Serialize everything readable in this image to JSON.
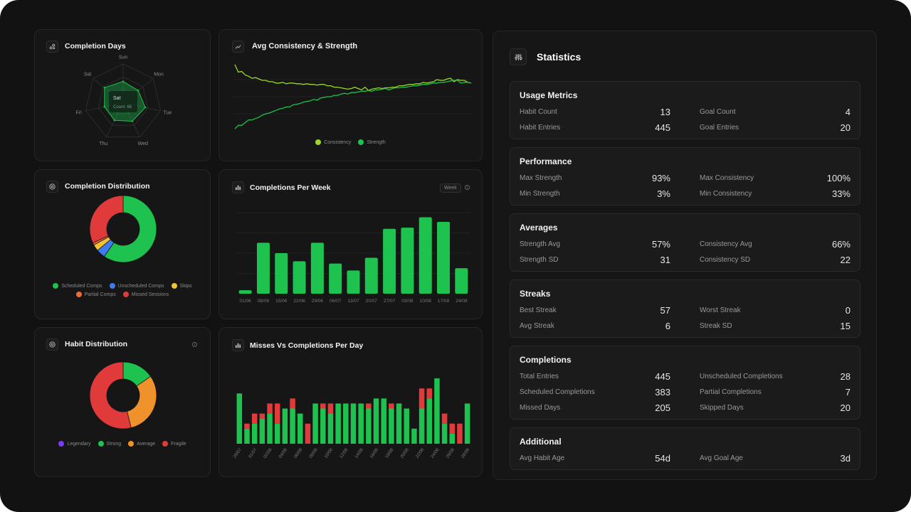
{
  "cards": {
    "completion_days": {
      "title": "Completion Days",
      "tooltip_title": "Sat",
      "tooltip_text": "Count: 68"
    },
    "avg_consistency": {
      "title": "Avg Consistency & Strength",
      "legend": [
        "Consistency",
        "Strength"
      ]
    },
    "completion_distribution": {
      "title": "Completion Distribution",
      "legend": [
        "Scheduled Comps",
        "Unscheduled Comps",
        "Skips",
        "Partial Comps",
        "Missed Sessions"
      ]
    },
    "completions_per_week": {
      "title": "Completions Per Week",
      "period_tag": "Week"
    },
    "habit_distribution": {
      "title": "Habit Distribution",
      "legend": [
        "Legendary",
        "Strong",
        "Average",
        "Fragile"
      ]
    },
    "misses_vs_completions": {
      "title": "Misses Vs Completions Per Day"
    }
  },
  "colors": {
    "green": "#1ec24e",
    "lime": "#9ad82a",
    "red": "#e03a3a",
    "orange": "#f0922b",
    "blue": "#3f7cf0",
    "yellow": "#f2c230",
    "purple": "#7a3cf0",
    "partial": "#f06a3a"
  },
  "chart_data": [
    {
      "type": "radar",
      "title": "Completion Days",
      "categories": [
        "Sun",
        "Mon",
        "Tue",
        "Wed",
        "Thu",
        "Fri",
        "Sat"
      ],
      "values": [
        60,
        55,
        65,
        60,
        57,
        55,
        68
      ],
      "max": 110
    },
    {
      "type": "line",
      "title": "Avg Consistency & Strength",
      "series": [
        {
          "name": "Consistency",
          "values": [
            97,
            86,
            87,
            82,
            80,
            77,
            78,
            76,
            74,
            74,
            72,
            72,
            70,
            70,
            71,
            69,
            70,
            70,
            69,
            69,
            68,
            69,
            68,
            68,
            67,
            68,
            68,
            66,
            66,
            64,
            64,
            63,
            62,
            61,
            62,
            64,
            62,
            60,
            64,
            59,
            61,
            62,
            63,
            62,
            63,
            63,
            64,
            64,
            66,
            66,
            67,
            68,
            68,
            69,
            69,
            71,
            70,
            71,
            72,
            75,
            74,
            74,
            76,
            77,
            72,
            75,
            74,
            74,
            71,
            70
          ]
        },
        {
          "name": "Strength",
          "values": [
            3,
            8,
            8,
            12,
            16,
            16,
            18,
            20,
            23,
            25,
            26,
            28,
            30,
            32,
            33,
            35,
            35,
            38,
            39,
            40,
            42,
            43,
            44,
            46,
            45,
            48,
            49,
            50,
            50,
            52,
            52,
            54,
            55,
            54,
            56,
            56,
            57,
            58,
            58,
            59,
            58,
            60,
            60,
            61,
            62,
            60,
            62,
            63,
            63,
            64,
            64,
            65,
            66,
            66,
            67,
            68,
            68,
            69,
            70,
            70,
            71,
            71,
            72,
            73,
            74,
            74,
            70,
            71,
            71,
            70
          ]
        }
      ],
      "ylim": [
        0,
        100
      ]
    },
    {
      "type": "pie",
      "title": "Completion Distribution",
      "labels": [
        "Scheduled Comps",
        "Unscheduled Comps",
        "Skips",
        "Partial Comps",
        "Missed Sessions"
      ],
      "values": [
        383,
        28,
        20,
        7,
        205
      ]
    },
    {
      "type": "bar",
      "title": "Completions Per Week",
      "categories": [
        "01/06",
        "08/06",
        "15/06",
        "22/06",
        "29/06",
        "06/07",
        "13/07",
        "20/07",
        "27/07",
        "03/08",
        "10/08",
        "17/08",
        "24/08"
      ],
      "values": [
        3,
        44,
        35,
        28,
        44,
        26,
        20,
        31,
        56,
        57,
        66,
        62,
        22
      ],
      "ylim": [
        0,
        70
      ]
    },
    {
      "type": "pie",
      "title": "Habit Distribution",
      "labels": [
        "Legendary",
        "Strong",
        "Average",
        "Fragile"
      ],
      "values": [
        0,
        2,
        4,
        7
      ]
    },
    {
      "type": "bar",
      "title": "Misses Vs Completions Per Day",
      "categories": [
        "29/07",
        "30/07",
        "31/07",
        "01/08",
        "02/08",
        "03/08",
        "04/08",
        "05/08",
        "06/08",
        "07/08",
        "08/08",
        "09/08",
        "10/08",
        "11/08",
        "12/08",
        "13/08",
        "14/08",
        "15/08",
        "16/08",
        "17/08",
        "18/08",
        "19/08",
        "20/08",
        "21/08",
        "22/08",
        "23/08",
        "24/08",
        "25/08",
        "26/08",
        "27/08",
        "28/08"
      ],
      "x_tick_labels": [
        "29/07",
        "31/07",
        "02/08",
        "04/08",
        "06/08",
        "08/08",
        "10/08",
        "12/08",
        "14/08",
        "16/08",
        "18/08",
        "20/08",
        "22/08",
        "24/08",
        "26/08",
        "28/08"
      ],
      "series": [
        {
          "name": "Completions",
          "values": [
            10,
            3,
            4,
            5,
            6,
            4,
            7,
            7,
            6,
            0,
            8,
            7,
            6,
            8,
            8,
            8,
            8,
            7,
            9,
            9,
            7,
            8,
            7,
            3,
            7,
            9,
            13,
            4,
            2,
            0,
            8
          ]
        },
        {
          "name": "Misses",
          "values": [
            0,
            1,
            2,
            1,
            2,
            4,
            0,
            2,
            0,
            4,
            0,
            1,
            2,
            0,
            0,
            0,
            0,
            1,
            0,
            0,
            1,
            0,
            0,
            0,
            4,
            2,
            0,
            2,
            2,
            4,
            0
          ]
        }
      ],
      "ylim": [
        0,
        14
      ]
    }
  ],
  "stats": {
    "title": "Statistics",
    "sections": [
      {
        "title": "Usage Metrics",
        "rows": [
          [
            {
              "label": "Habit Count",
              "value": "13"
            },
            {
              "label": "Goal Count",
              "value": "4"
            }
          ],
          [
            {
              "label": "Habit Entries",
              "value": "445"
            },
            {
              "label": "Goal Entries",
              "value": "20"
            }
          ]
        ]
      },
      {
        "title": "Performance",
        "rows": [
          [
            {
              "label": "Max Strength",
              "value": "93%"
            },
            {
              "label": "Max Consistency",
              "value": "100%"
            }
          ],
          [
            {
              "label": "Min Strength",
              "value": "3%"
            },
            {
              "label": "Min Consistency",
              "value": "33%"
            }
          ]
        ]
      },
      {
        "title": "Averages",
        "rows": [
          [
            {
              "label": "Strength Avg",
              "value": "57%"
            },
            {
              "label": "Consistency Avg",
              "value": "66%"
            }
          ],
          [
            {
              "label": "Strength SD",
              "value": "31"
            },
            {
              "label": "Consistency SD",
              "value": "22"
            }
          ]
        ]
      },
      {
        "title": "Streaks",
        "rows": [
          [
            {
              "label": "Best Streak",
              "value": "57"
            },
            {
              "label": "Worst Streak",
              "value": "0"
            }
          ],
          [
            {
              "label": "Avg Streak",
              "value": "6"
            },
            {
              "label": "Streak SD",
              "value": "15"
            }
          ]
        ]
      },
      {
        "title": "Completions",
        "rows": [
          [
            {
              "label": "Total Entries",
              "value": "445"
            },
            {
              "label": "Unscheduled Completions",
              "value": "28"
            }
          ],
          [
            {
              "label": "Scheduled Completions",
              "value": "383"
            },
            {
              "label": "Partial Completions",
              "value": "7"
            }
          ],
          [
            {
              "label": "Missed Days",
              "value": "205"
            },
            {
              "label": "Skipped Days",
              "value": "20"
            }
          ]
        ]
      },
      {
        "title": "Additional",
        "rows": [
          [
            {
              "label": "Avg Habit Age",
              "value": "54d"
            },
            {
              "label": "Avg Goal Age",
              "value": "3d"
            }
          ]
        ]
      }
    ]
  }
}
